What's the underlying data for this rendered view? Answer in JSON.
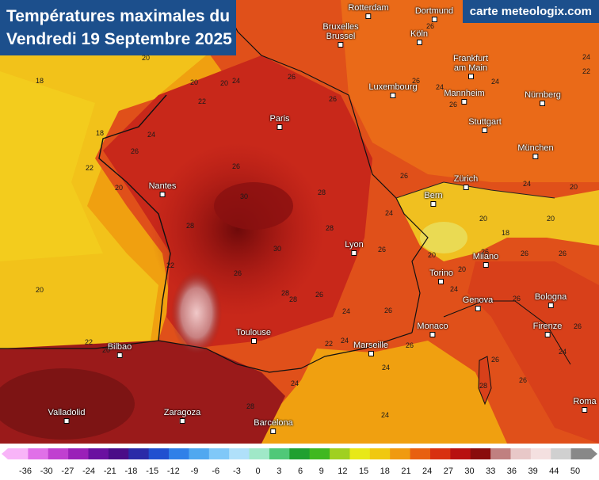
{
  "title": {
    "line1": "Températures maximales du",
    "line2": "Vendredi 19 Septembre 2025"
  },
  "brand": "carte meteologix.com",
  "cities": [
    {
      "name": "Rotterdam"
    },
    {
      "name": "Dortmund"
    },
    {
      "name": "Bruxelles\nBrussel"
    },
    {
      "name": "Köln"
    },
    {
      "name": "Frankfurt\nam Main"
    },
    {
      "name": "Luxembourg"
    },
    {
      "name": "Mannheim"
    },
    {
      "name": "Nürnberg"
    },
    {
      "name": "Paris"
    },
    {
      "name": "Stuttgart"
    },
    {
      "name": "München"
    },
    {
      "name": "Nantes"
    },
    {
      "name": "Zürich"
    },
    {
      "name": "Bern"
    },
    {
      "name": "Lyon"
    },
    {
      "name": "Milano"
    },
    {
      "name": "Torino"
    },
    {
      "name": "Bologna"
    },
    {
      "name": "Genova"
    },
    {
      "name": "Toulouse"
    },
    {
      "name": "Monaco"
    },
    {
      "name": "Firenze"
    },
    {
      "name": "Marseille"
    },
    {
      "name": "Bilbao"
    },
    {
      "name": "Valladolid"
    },
    {
      "name": "Zaragoza"
    },
    {
      "name": "Barcelona"
    },
    {
      "name": "Roma"
    }
  ],
  "values": [
    "18",
    "20",
    "20",
    "22",
    "20",
    "26",
    "24",
    "26",
    "26",
    "24",
    "24",
    "18",
    "22",
    "24",
    "26",
    "26",
    "26",
    "26",
    "22",
    "26",
    "24",
    "20",
    "20",
    "24",
    "20",
    "28",
    "30",
    "28",
    "28",
    "26",
    "24",
    "20",
    "18",
    "20",
    "20",
    "20",
    "30",
    "22",
    "26",
    "26",
    "26",
    "22",
    "24",
    "28",
    "26",
    "24",
    "26",
    "26",
    "20",
    "22",
    "24",
    "26",
    "26",
    "24",
    "28",
    "24",
    "24",
    "26",
    "24",
    "28",
    "26",
    "26",
    "28"
  ],
  "legend": {
    "ticks": [
      "-36",
      "-30",
      "-27",
      "-24",
      "-21",
      "-18",
      "-15",
      "-12",
      "-9",
      "-6",
      "-3",
      "0",
      "3",
      "6",
      "9",
      "12",
      "15",
      "18",
      "21",
      "24",
      "27",
      "30",
      "33",
      "36",
      "39",
      "44",
      "50"
    ],
    "colors": [
      "#f8b4f8",
      "#e070e8",
      "#c040d0",
      "#9a20b8",
      "#6a10a0",
      "#4a0c88",
      "#2a2aa8",
      "#2050d0",
      "#3080e8",
      "#50a8f0",
      "#80c8f8",
      "#b0e0fa",
      "#a0e8c8",
      "#50c878",
      "#20a030",
      "#40b820",
      "#a0d020",
      "#e8e818",
      "#f0c810",
      "#f09a10",
      "#e86010",
      "#d83010",
      "#b81010",
      "#8a0c0c",
      "#c08080",
      "#e8c8c8",
      "#f4e0e0",
      "#d0d0d0",
      "#888888"
    ]
  }
}
